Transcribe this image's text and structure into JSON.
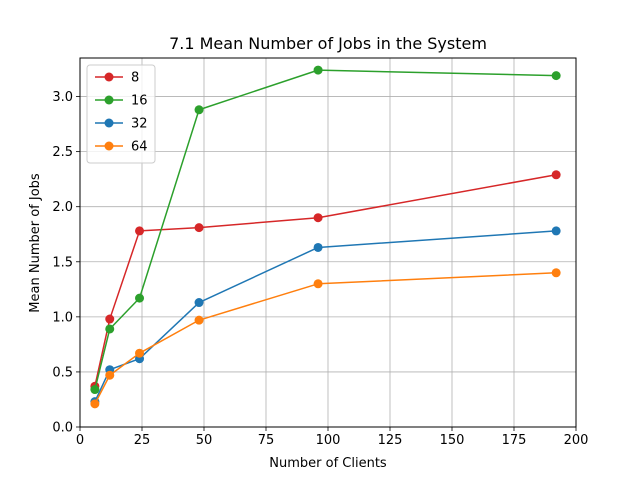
{
  "chart_data": {
    "type": "line",
    "title": "7.1 Mean Number of Jobs in the System",
    "xlabel": "Number of Clients",
    "ylabel": "Mean Number of Jobs",
    "xlim": [
      0,
      200
    ],
    "ylim": [
      0,
      3.35
    ],
    "x_ticks": [
      0,
      25,
      50,
      75,
      100,
      125,
      150,
      175,
      200
    ],
    "y_ticks": [
      0.0,
      0.5,
      1.0,
      1.5,
      2.0,
      2.5,
      3.0
    ],
    "x_tick_labels": [
      "0",
      "25",
      "50",
      "75",
      "100",
      "125",
      "150",
      "175",
      "200"
    ],
    "y_tick_labels": [
      "0.0",
      "0.5",
      "1.0",
      "1.5",
      "2.0",
      "2.5",
      "3.0"
    ],
    "grid": true,
    "legend_position": "top-left",
    "x": [
      6,
      12,
      24,
      48,
      96,
      192
    ],
    "series": [
      {
        "name": "8",
        "color": "#d62728",
        "values": [
          0.37,
          0.98,
          1.78,
          1.81,
          1.9,
          2.29
        ]
      },
      {
        "name": "16",
        "color": "#2ca02c",
        "values": [
          0.34,
          0.89,
          1.17,
          2.88,
          3.24,
          3.19
        ]
      },
      {
        "name": "32",
        "color": "#1f77b4",
        "values": [
          0.23,
          0.52,
          0.62,
          1.13,
          1.63,
          1.78
        ]
      },
      {
        "name": "64",
        "color": "#ff7f0e",
        "values": [
          0.21,
          0.47,
          0.67,
          0.97,
          1.3,
          1.4
        ]
      }
    ]
  }
}
